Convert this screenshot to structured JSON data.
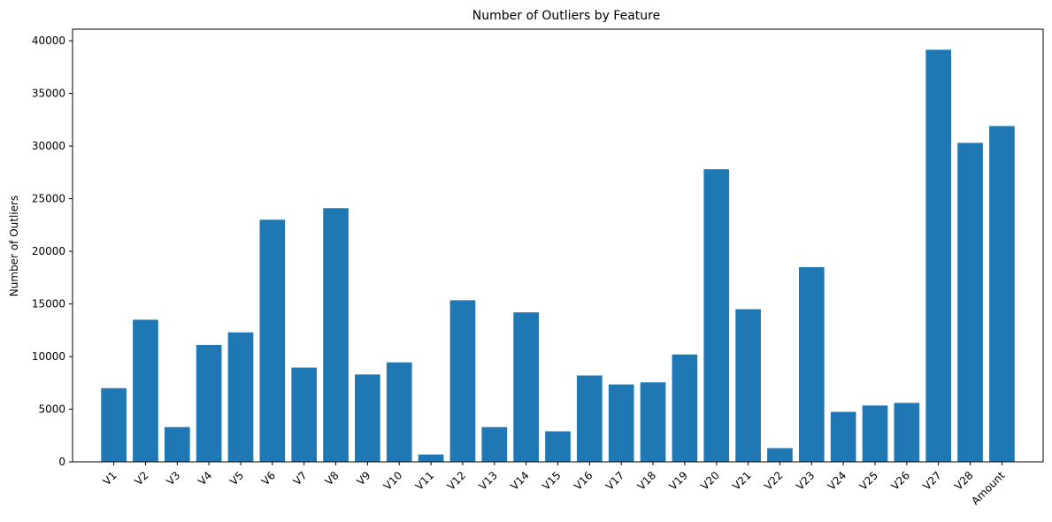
{
  "chart_data": {
    "type": "bar",
    "title": "Number of Outliers by Feature",
    "xlabel": "",
    "ylabel": "Number of Outliers",
    "categories": [
      "V1",
      "V2",
      "V3",
      "V4",
      "V5",
      "V6",
      "V7",
      "V8",
      "V9",
      "V10",
      "V11",
      "V12",
      "V13",
      "V14",
      "V15",
      "V16",
      "V17",
      "V18",
      "V19",
      "V20",
      "V21",
      "V22",
      "V23",
      "V24",
      "V25",
      "V26",
      "V27",
      "V28",
      "Amount"
    ],
    "values": [
      7000,
      13500,
      3300,
      11100,
      12300,
      23000,
      8950,
      24100,
      8300,
      9450,
      700,
      15350,
      3300,
      14200,
      2900,
      8200,
      7350,
      7550,
      10200,
      27800,
      14500,
      1300,
      18500,
      4750,
      5350,
      5600,
      39150,
      30300,
      31900
    ],
    "ylim": [
      0,
      41100
    ],
    "yticks": [
      0,
      5000,
      10000,
      15000,
      20000,
      25000,
      30000,
      35000,
      40000
    ],
    "xtick_rotation": -45,
    "grid": false,
    "bar_color": "#1f77b4"
  }
}
